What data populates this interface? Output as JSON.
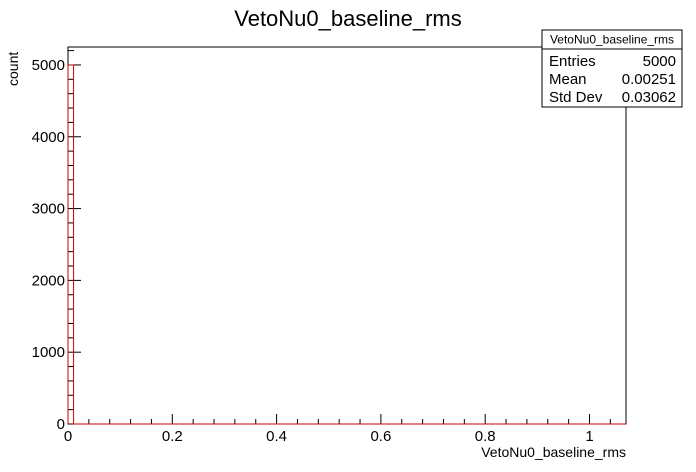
{
  "chart_data": {
    "type": "bar",
    "title": "VetoNu0_baseline_rms",
    "xlabel": "VetoNu0_baseline_rms",
    "ylabel": "count",
    "xlim": [
      0,
      1.07
    ],
    "ylim": [
      0,
      5250
    ],
    "x_ticks": [
      0,
      0.2,
      0.4,
      0.6,
      0.8,
      1
    ],
    "x_tick_labels": [
      "0",
      "0.2",
      "0.4",
      "0.6",
      "0.8",
      "1"
    ],
    "y_ticks": [
      0,
      1000,
      2000,
      3000,
      4000,
      5000
    ],
    "y_tick_labels": [
      "0",
      "1000",
      "2000",
      "3000",
      "4000",
      "5000"
    ],
    "bins": [
      {
        "x0": 0.0,
        "x1": 0.0107,
        "value": 5000
      }
    ],
    "line_color": "#cc0000",
    "grid": false,
    "stats_box": {
      "title": "VetoNu0_baseline_rms",
      "rows": [
        {
          "label": "Entries",
          "value": "5000"
        },
        {
          "label": "Mean",
          "value": "0.00251"
        },
        {
          "label": "Std Dev",
          "value": "0.03062"
        }
      ]
    }
  }
}
